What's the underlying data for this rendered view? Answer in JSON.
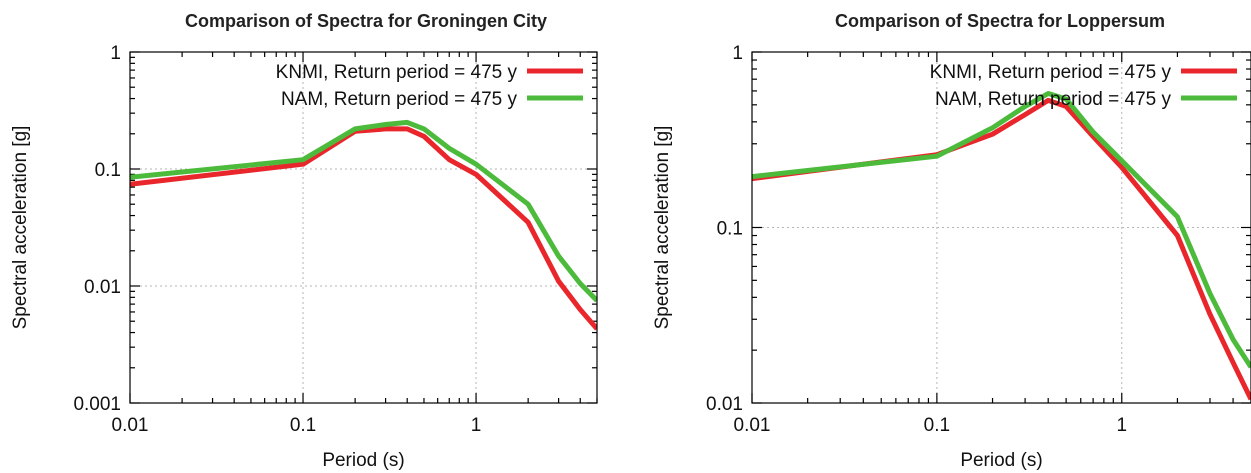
{
  "chart_data": [
    {
      "type": "line",
      "title": "Comparison of Spectra for Groningen City",
      "xlabel": "Period (s)",
      "ylabel": "Spectral acceleration [g]",
      "xscale": "log",
      "yscale": "log",
      "xlim": [
        0.01,
        5
      ],
      "ylim": [
        0.001,
        1
      ],
      "xticks": [
        0.01,
        0.1,
        1
      ],
      "xtick_labels": [
        "0.01",
        "0.1",
        "1"
      ],
      "yticks": [
        0.001,
        0.01,
        0.1,
        1
      ],
      "ytick_labels": [
        "0.001",
        "0.01",
        "0.1",
        "1"
      ],
      "grid": true,
      "legend_position": "top-right",
      "series": [
        {
          "name": "KNMI, Return period = 475 y",
          "color": "#e8262b",
          "x": [
            0.01,
            0.1,
            0.2,
            0.3,
            0.4,
            0.5,
            0.7,
            1,
            2,
            3,
            4,
            5
          ],
          "y": [
            0.074,
            0.11,
            0.21,
            0.22,
            0.22,
            0.19,
            0.12,
            0.09,
            0.035,
            0.011,
            0.0063,
            0.0043
          ]
        },
        {
          "name": "NAM, Return period = 475 y",
          "color": "#4cbb3c",
          "x": [
            0.01,
            0.1,
            0.2,
            0.3,
            0.4,
            0.5,
            0.7,
            1,
            2,
            3,
            4,
            5
          ],
          "y": [
            0.085,
            0.12,
            0.22,
            0.24,
            0.25,
            0.22,
            0.15,
            0.11,
            0.05,
            0.018,
            0.0105,
            0.0075
          ]
        }
      ]
    },
    {
      "type": "line",
      "title": "Comparison of Spectra for Loppersum",
      "xlabel": "Period (s)",
      "ylabel": "Spectral acceleration [g]",
      "xscale": "log",
      "yscale": "log",
      "xlim": [
        0.01,
        5
      ],
      "ylim": [
        0.01,
        1
      ],
      "xticks": [
        0.01,
        0.1,
        1
      ],
      "xtick_labels": [
        "0.01",
        "0.1",
        "1"
      ],
      "yticks": [
        0.01,
        0.1,
        1
      ],
      "ytick_labels": [
        "0.01",
        "0.1",
        "1"
      ],
      "grid": true,
      "legend_position": "top-right",
      "series": [
        {
          "name": "KNMI, Return period = 475 y",
          "color": "#e8262b",
          "x": [
            0.01,
            0.1,
            0.2,
            0.3,
            0.4,
            0.5,
            0.7,
            1,
            2,
            3,
            4,
            5
          ],
          "y": [
            0.19,
            0.26,
            0.34,
            0.44,
            0.53,
            0.49,
            0.33,
            0.22,
            0.09,
            0.032,
            0.017,
            0.0105
          ]
        },
        {
          "name": "NAM, Return period = 475 y",
          "color": "#4cbb3c",
          "x": [
            0.01,
            0.1,
            0.2,
            0.3,
            0.4,
            0.5,
            0.7,
            1,
            2,
            3,
            4,
            5
          ],
          "y": [
            0.195,
            0.255,
            0.37,
            0.49,
            0.58,
            0.54,
            0.35,
            0.24,
            0.115,
            0.042,
            0.023,
            0.016
          ]
        }
      ]
    }
  ]
}
